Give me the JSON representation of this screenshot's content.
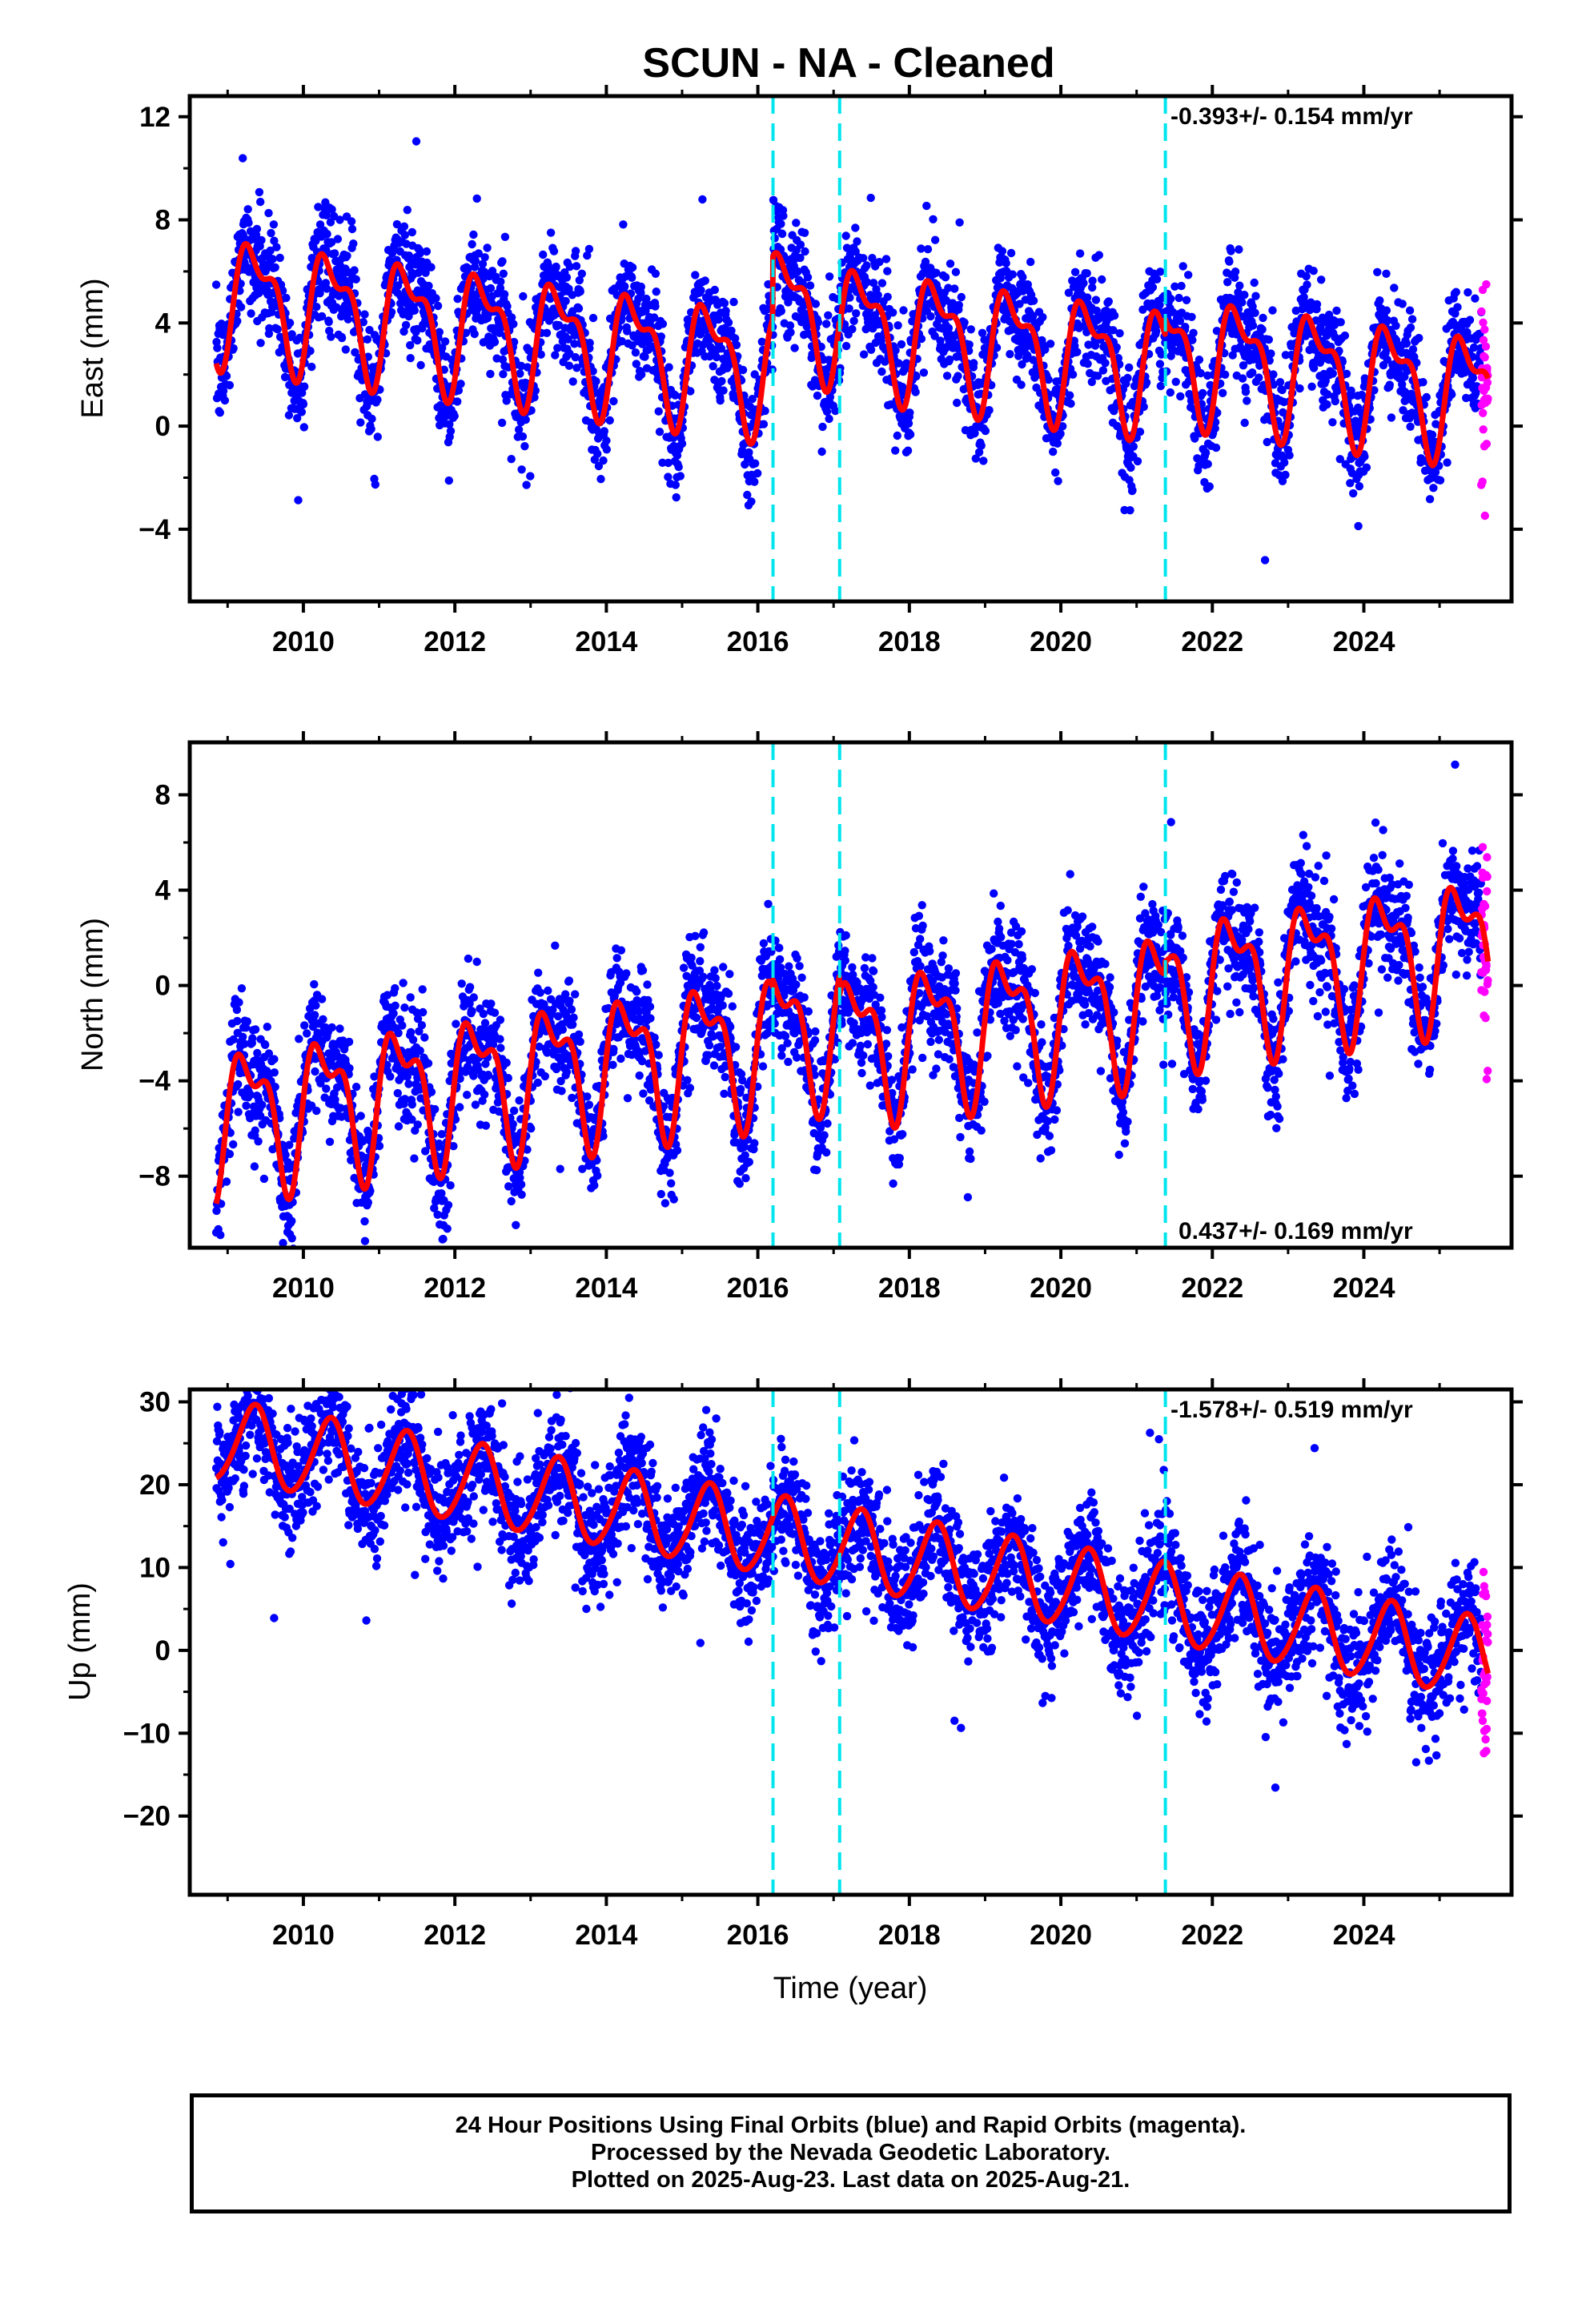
{
  "chart_data": {
    "type": "scatter",
    "title": "SCUN  - NA - Cleaned",
    "xlabel": "Time (year)",
    "xlim": [
      2008.5,
      2025.95
    ],
    "x_ticks": [
      2010,
      2012,
      2014,
      2016,
      2018,
      2020,
      2022,
      2024
    ],
    "x_tick_labels": [
      "2010",
      "2012",
      "2014",
      "2016",
      "2018",
      "2020",
      "2022",
      "2024"
    ],
    "equipment_change_dates": [
      2016.2,
      2017.08,
      2021.38
    ],
    "rapid_orbit_start": 2025.55,
    "panels": [
      {
        "name": "East",
        "ylabel": "East (mm)",
        "ylim": [
          -6.8,
          12.8
        ],
        "y_ticks": [
          -4,
          0,
          4,
          8,
          12
        ],
        "y_tick_labels": [
          "−4",
          "0",
          "4",
          "8",
          "12"
        ],
        "rate": "-0.393+/- 0.154 mm/yr",
        "rate_position": "top-right",
        "model": {
          "intercept": 1.9,
          "trend": -0.393,
          "amp1": 2.1,
          "phase1": 0.12,
          "amp2": 1.0,
          "phase2": 0.55,
          "noise": 1.1,
          "offsets": [
            [
              2016.2,
              2.4
            ],
            [
              2017.08,
              -0.3
            ],
            [
              2021.38,
              0.6
            ]
          ]
        }
      },
      {
        "name": "North",
        "ylabel": "North (mm)",
        "ylim": [
          -11.0,
          10.2
        ],
        "y_ticks": [
          -8,
          -4,
          0,
          4,
          8
        ],
        "y_tick_labels": [
          "−8",
          "−4",
          "0",
          "4",
          "8"
        ],
        "rate": "0.437+/- 0.169 mm/yr",
        "rate_position": "bottom-right",
        "model": {
          "intercept": -2.0,
          "trend": 0.437,
          "amp1": 2.6,
          "phase1": 0.03,
          "amp2": 1.3,
          "phase2": 0.45,
          "noise": 1.2,
          "offsets": [
            [
              2016.2,
              0.3
            ],
            [
              2017.08,
              -0.8
            ],
            [
              2021.38,
              0.5
            ]
          ]
        }
      },
      {
        "name": "Up",
        "ylabel": "Up (mm)",
        "ylim": [
          -29.5,
          31.5
        ],
        "y_ticks": [
          -20,
          -10,
          0,
          10,
          20,
          30
        ],
        "y_tick_labels": [
          "−20",
          "−10",
          "0",
          "10",
          "20",
          "30"
        ],
        "rate": "-1.578+/- 0.519 mm/yr",
        "rate_position": "top-right",
        "model": {
          "intercept": 12.5,
          "trend": -1.578,
          "amp1": 4.8,
          "phase1": 0.1,
          "amp2": 0.5,
          "phase2": 0.3,
          "noise": 3.6,
          "offsets": [
            [
              2016.2,
              0.0
            ],
            [
              2017.08,
              0.0
            ],
            [
              2021.38,
              0.0
            ]
          ]
        }
      }
    ],
    "series": [
      {
        "name": "Final Orbits",
        "color": "#0000ff",
        "marker": "dot",
        "x_range": [
          2008.85,
          2025.55
        ]
      },
      {
        "name": "Rapid Orbits",
        "color": "#ff00ff",
        "marker": "dot",
        "x_range": [
          2025.55,
          2025.64
        ]
      },
      {
        "name": "Model fit",
        "color": "#ff0000",
        "marker": "line"
      }
    ],
    "colors": {
      "final": "#0000ff",
      "rapid": "#ff00ff",
      "model": "#ff0000",
      "breaks": "#00e5ee"
    }
  },
  "caption": {
    "line1": "24 Hour Positions Using Final Orbits (blue) and Rapid Orbits (magenta).",
    "line2": "Processed by the Nevada Geodetic Laboratory.",
    "line3": "Plotted on 2025-Aug-23. Last data on 2025-Aug-21."
  }
}
